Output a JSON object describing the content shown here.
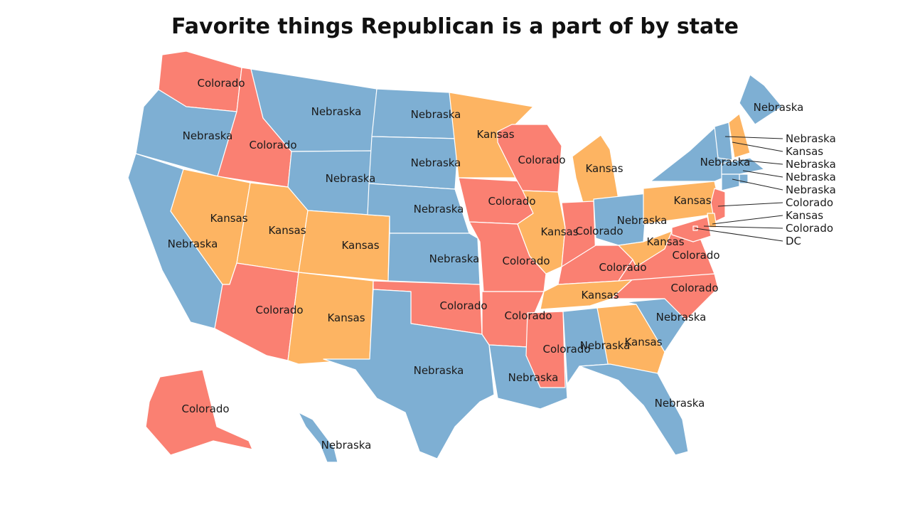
{
  "title": "Favorite things Republican is a part of by state",
  "legend_colors": {
    "Nebraska": "#7eafd3",
    "Colorado": "#fa8072",
    "Kansas": "#fdb462"
  },
  "states": {
    "WA": "Colorado",
    "OR": "Nebraska",
    "CA": "Nebraska",
    "ID": "Colorado",
    "NV": "Kansas",
    "MT": "Nebraska",
    "WY": "Nebraska",
    "UT": "Kansas",
    "AZ": "Colorado",
    "CO": "Kansas",
    "NM": "Kansas",
    "ND": "Nebraska",
    "SD": "Nebraska",
    "NE": "Nebraska",
    "KS": "Nebraska",
    "OK": "Colorado",
    "TX": "Nebraska",
    "MN": "Kansas",
    "IA": "Colorado",
    "MO": "Colorado",
    "AR": "Colorado",
    "LA": "Nebraska",
    "WI": "Colorado",
    "IL": "Kansas",
    "MI": "Kansas",
    "IN": "Colorado",
    "OH": "Nebraska",
    "KY": "Colorado",
    "TN": "Kansas",
    "MS": "Colorado",
    "AL": "Nebraska",
    "GA": "Kansas",
    "FL": "Nebraska",
    "SC": "Nebraska",
    "NC": "Colorado",
    "VA": "Colorado",
    "WV": "Kansas",
    "PA": "Kansas",
    "NY": "Nebraska",
    "ME": "Nebraska",
    "AK": "Colorado",
    "HI": "Nebraska",
    "VT": "Nebraska",
    "NH": "Kansas",
    "MA": "Nebraska",
    "RI": "Nebraska",
    "CT": "Nebraska",
    "NJ": "Colorado",
    "DE": "Kansas",
    "MD": "Colorado",
    "DC": "DC"
  },
  "callouts": [
    "Nebraska",
    "Kansas",
    "Nebraska",
    "Nebraska",
    "Nebraska",
    "Colorado",
    "Kansas",
    "Colorado",
    "DC"
  ]
}
